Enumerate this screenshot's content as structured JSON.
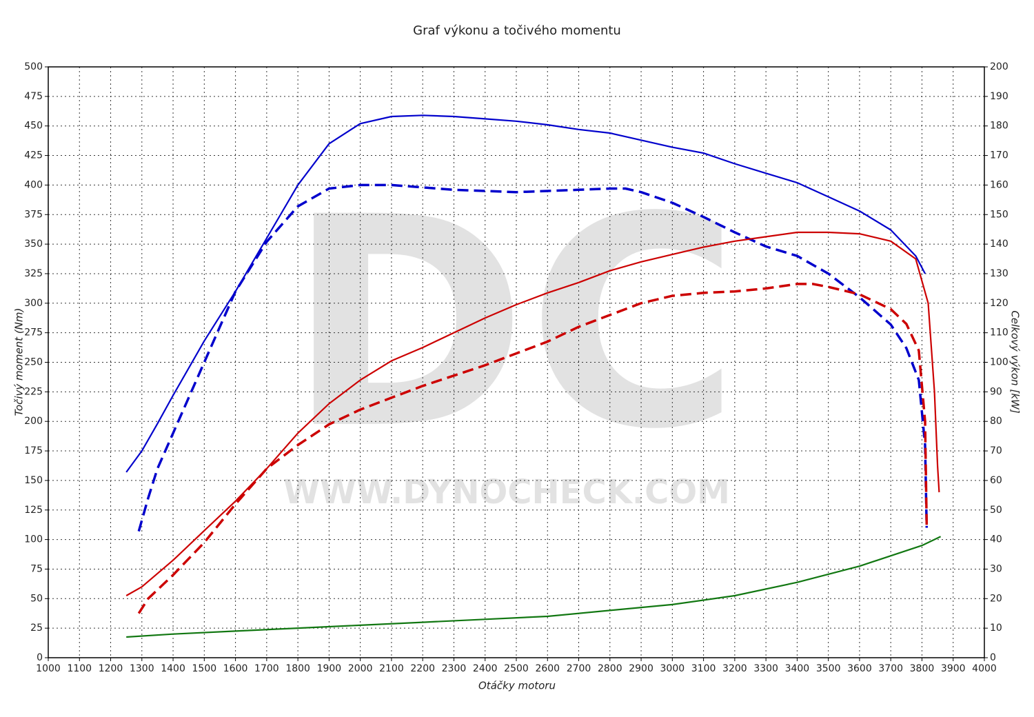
{
  "chart_data": {
    "type": "line",
    "title": "Graf výkonu a točivého momentu",
    "x_label": "Otáčky motoru",
    "y_label": "Točivý moment (Nm)",
    "y2_label": "Celkový výkon [kW]",
    "watermark": {
      "logo": "DC",
      "url": "WWW.DYNOCHECK.COM"
    },
    "xlim": [
      1000,
      4000
    ],
    "xticks": [
      1000,
      1100,
      1200,
      1300,
      1400,
      1500,
      1600,
      1700,
      1800,
      1900,
      2000,
      2100,
      2200,
      2300,
      2400,
      2500,
      2600,
      2700,
      2800,
      2900,
      3000,
      3100,
      3200,
      3300,
      3400,
      3500,
      3600,
      3700,
      3800,
      3900,
      4000
    ],
    "ylim": [
      0,
      500
    ],
    "yticks": [
      0,
      25,
      50,
      75,
      100,
      125,
      150,
      175,
      200,
      225,
      250,
      275,
      300,
      325,
      350,
      375,
      400,
      425,
      450,
      475,
      500
    ],
    "y2lim": [
      0,
      200
    ],
    "y2ticks": [
      0,
      10,
      20,
      30,
      40,
      50,
      60,
      70,
      80,
      90,
      100,
      110,
      120,
      130,
      140,
      150,
      160,
      170,
      180,
      190,
      200
    ],
    "grid": true,
    "series": [
      {
        "color": "#0000cc",
        "dashed": false,
        "axis": "y",
        "x": [
          1250,
          1300,
          1350,
          1400,
          1500,
          1600,
          1700,
          1800,
          1900,
          2000,
          2100,
          2200,
          2300,
          2400,
          2500,
          2600,
          2700,
          2800,
          2900,
          3000,
          3100,
          3200,
          3300,
          3400,
          3500,
          3600,
          3700,
          3780,
          3810
        ],
        "values": [
          157,
          175,
          198,
          222,
          268,
          310,
          355,
          400,
          435,
          452,
          458,
          459,
          458,
          456,
          454,
          451,
          447,
          444,
          438,
          432,
          427,
          418,
          410,
          402,
          390,
          378,
          362,
          340,
          325
        ]
      },
      {
        "color": "#0000cc",
        "dashed": true,
        "axis": "y",
        "x": [
          1290,
          1320,
          1350,
          1400,
          1500,
          1600,
          1700,
          1800,
          1900,
          2000,
          2100,
          2200,
          2300,
          2400,
          2500,
          2600,
          2700,
          2800,
          2850,
          2900,
          3000,
          3100,
          3200,
          3300,
          3400,
          3500,
          3600,
          3700,
          3750,
          3790,
          3810,
          3815
        ],
        "values": [
          107,
          135,
          160,
          190,
          250,
          310,
          352,
          382,
          397,
          400,
          400,
          398,
          396,
          395,
          394,
          395,
          396,
          397,
          397,
          394,
          385,
          373,
          360,
          348,
          340,
          325,
          305,
          282,
          262,
          235,
          180,
          110
        ]
      },
      {
        "color": "#cc0000",
        "dashed": false,
        "axis": "y2",
        "x": [
          1250,
          1300,
          1400,
          1500,
          1600,
          1700,
          1800,
          1900,
          2000,
          2100,
          2200,
          2300,
          2400,
          2500,
          2600,
          2700,
          2800,
          2900,
          3000,
          3100,
          3200,
          3300,
          3400,
          3450,
          3500,
          3600,
          3700,
          3780,
          3820,
          3840,
          3850,
          3855
        ],
        "values": [
          21,
          24,
          33,
          43,
          53,
          64,
          76,
          86,
          94,
          100.5,
          105,
          110,
          115,
          119.5,
          123.5,
          127,
          131,
          134,
          136.5,
          139,
          141,
          142.5,
          144,
          144,
          144,
          143.5,
          141,
          135,
          120,
          90,
          65,
          56
        ]
      },
      {
        "color": "#cc0000",
        "dashed": true,
        "axis": "y2",
        "x": [
          1290,
          1320,
          1400,
          1500,
          1600,
          1700,
          1800,
          1900,
          2000,
          2100,
          2200,
          2300,
          2400,
          2500,
          2600,
          2700,
          2800,
          2900,
          3000,
          3100,
          3200,
          3300,
          3400,
          3450,
          3500,
          3600,
          3700,
          3750,
          3790,
          3810,
          3815
        ],
        "values": [
          15,
          20,
          28,
          39,
          52,
          64,
          72,
          79,
          84,
          88,
          92,
          95.5,
          99,
          103,
          107,
          112,
          116,
          120,
          122.5,
          123.5,
          124,
          125,
          126.5,
          126.5,
          125.5,
          123,
          118,
          113,
          104,
          80,
          45
        ]
      },
      {
        "color": "#117711",
        "dashed": false,
        "axis": "y2",
        "x": [
          1250,
          1400,
          1600,
          1800,
          2000,
          2200,
          2400,
          2600,
          2800,
          3000,
          3200,
          3400,
          3600,
          3800,
          3860
        ],
        "values": [
          7,
          8,
          9,
          10,
          11,
          12,
          13,
          14,
          16,
          18,
          21,
          25.5,
          31,
          38,
          41
        ]
      }
    ]
  }
}
